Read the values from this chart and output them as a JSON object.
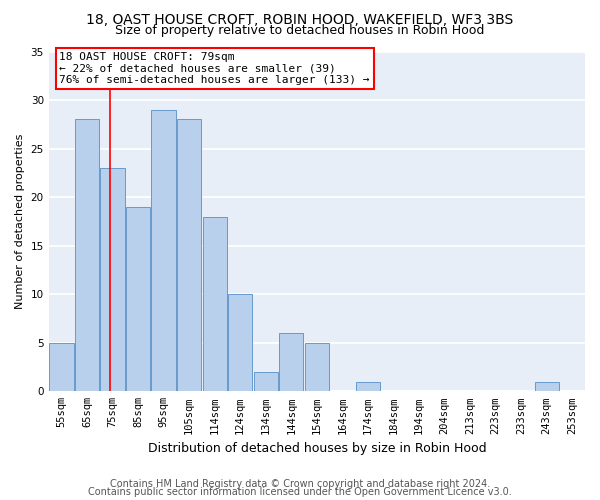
{
  "title1": "18, OAST HOUSE CROFT, ROBIN HOOD, WAKEFIELD, WF3 3BS",
  "title2": "Size of property relative to detached houses in Robin Hood",
  "xlabel": "Distribution of detached houses by size in Robin Hood",
  "ylabel": "Number of detached properties",
  "bin_labels": [
    "55sqm",
    "65sqm",
    "75sqm",
    "85sqm",
    "95sqm",
    "105sqm",
    "114sqm",
    "124sqm",
    "134sqm",
    "144sqm",
    "154sqm",
    "164sqm",
    "174sqm",
    "184sqm",
    "194sqm",
    "204sqm",
    "213sqm",
    "223sqm",
    "233sqm",
    "243sqm",
    "253sqm"
  ],
  "bar_values": [
    5,
    28,
    23,
    19,
    29,
    28,
    18,
    10,
    2,
    6,
    5,
    0,
    1,
    0,
    0,
    0,
    0,
    0,
    0,
    1,
    0
  ],
  "bar_color": "#b8d0eb",
  "bar_edge_color": "#6699cc",
  "red_line_x": 1.9,
  "annotation_line1": "18 OAST HOUSE CROFT: 79sqm",
  "annotation_line2": "← 22% of detached houses are smaller (39)",
  "annotation_line3": "76% of semi-detached houses are larger (133) →",
  "ylim": [
    0,
    35
  ],
  "yticks": [
    0,
    5,
    10,
    15,
    20,
    25,
    30,
    35
  ],
  "footer1": "Contains HM Land Registry data © Crown copyright and database right 2024.",
  "footer2": "Contains public sector information licensed under the Open Government Licence v3.0.",
  "bg_color": "#e8eef8",
  "grid_color": "#ffffff",
  "title_fontsize": 10,
  "subtitle_fontsize": 9,
  "ylabel_fontsize": 8,
  "xlabel_fontsize": 9,
  "tick_fontsize": 7.5,
  "annotation_fontsize": 8,
  "footer_fontsize": 7
}
